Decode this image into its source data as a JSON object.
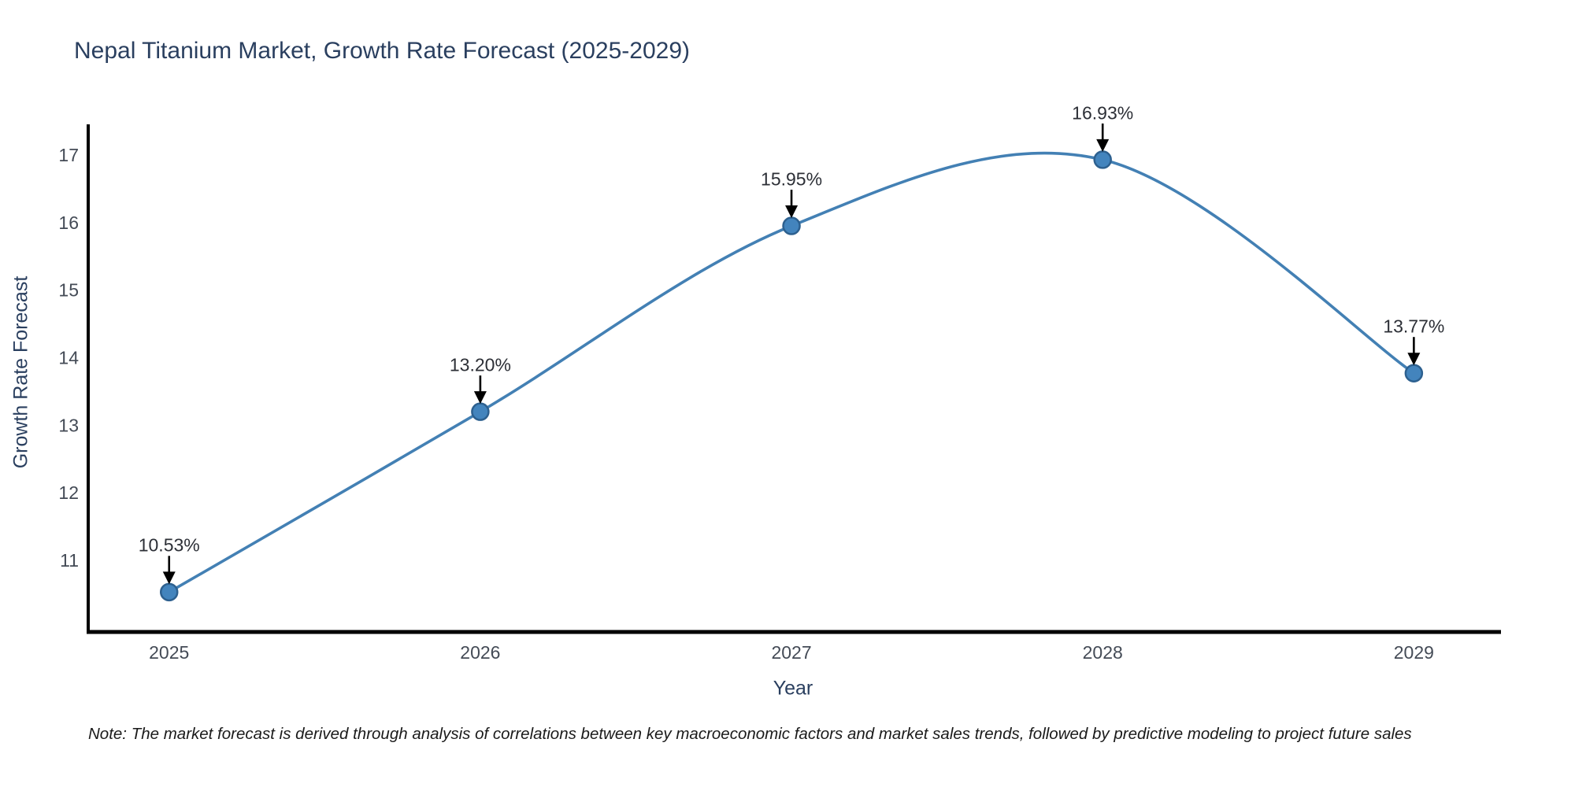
{
  "chart_data": {
    "type": "line",
    "title": "Nepal Titanium Market, Growth Rate Forecast (2025-2029)",
    "xlabel": "Year",
    "ylabel": "Growth Rate Forecast",
    "x": [
      2025,
      2026,
      2027,
      2028,
      2029
    ],
    "series": [
      {
        "name": "Growth Rate Forecast",
        "values": [
          10.53,
          13.2,
          15.95,
          16.93,
          13.77
        ],
        "point_labels": [
          "10.53%",
          "13.20%",
          "15.95%",
          "16.93%",
          "13.77%"
        ]
      }
    ],
    "xticks": [
      "2025",
      "2026",
      "2027",
      "2028",
      "2029"
    ],
    "yticks": [
      11,
      12,
      13,
      14,
      15,
      16,
      17
    ],
    "xlim": [
      2024.74,
      2029.28
    ],
    "ylim": [
      9.94,
      17.43
    ],
    "grid": false,
    "legend_position": "none",
    "line_smoothing": "spline",
    "colors": {
      "line": "#4380b4",
      "marker_fill": "#4384bd",
      "marker_edge": "#2d608f",
      "axis_line": "#000000",
      "tick_text": "#444b56",
      "title_text": "#2a3f5f",
      "annotation_text": "#2c2f36",
      "arrow": "#000000",
      "background": "#ffffff"
    }
  },
  "footnote": "Note: The market forecast is derived through analysis of correlations between key macroeconomic factors and market sales trends, followed by predictive modeling to project future sales"
}
